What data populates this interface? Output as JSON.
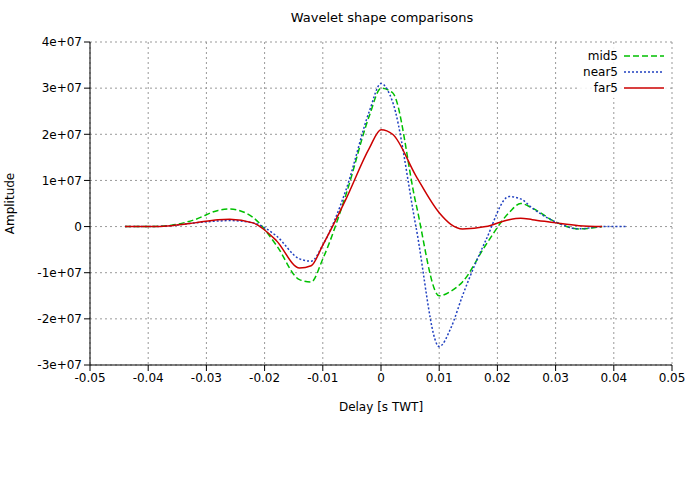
{
  "chart_data": {
    "type": "line",
    "title": "Wavelet shape comparisons",
    "x_label": "Delay [s TWT]",
    "y_label": "Amplitude",
    "x": [
      -0.044,
      -0.04,
      -0.036,
      -0.032,
      -0.028,
      -0.026,
      -0.022,
      -0.018,
      -0.014,
      -0.012,
      -0.01,
      -0.006,
      -0.002,
      0,
      0.002,
      0.006,
      0.01,
      0.012,
      0.014,
      0.018,
      0.022,
      0.024,
      0.026,
      0.03,
      0.034,
      0.038,
      0.042
    ],
    "series": [
      {
        "name": "mid5",
        "color": "#00c000",
        "line_style": "dashed",
        "values": [
          0,
          0,
          300000,
          1500000,
          3500000,
          3800000,
          2000000,
          -4000000,
          -11500000,
          -12000000,
          -7000000,
          7000000,
          24000000,
          30000000,
          29000000,
          5000000,
          -15000000,
          -14000000,
          -12000000,
          -4000000,
          3000000,
          5000000,
          4000000,
          1000000,
          -500000,
          0,
          null
        ]
      },
      {
        "name": "near5",
        "color": "#2040c0",
        "line_style": "dotted",
        "values": [
          0,
          0,
          200000,
          800000,
          1200000,
          1300000,
          800000,
          -2000000,
          -7000000,
          -7500000,
          -4000000,
          8000000,
          25000000,
          31000000,
          27000000,
          0,
          -26000000,
          -22000000,
          -15000000,
          -3000000,
          6500000,
          6000000,
          4000000,
          1000000,
          -500000,
          0,
          0
        ]
      },
      {
        "name": "far5",
        "color": "#cc0000",
        "line_style": "solid",
        "values": [
          0,
          0,
          200000,
          800000,
          1500000,
          1600000,
          800000,
          -3000000,
          -9000000,
          -8500000,
          -4000000,
          6000000,
          17000000,
          21000000,
          20000000,
          11000000,
          3000000,
          500000,
          -500000,
          0,
          1500000,
          1800000,
          1500000,
          800000,
          200000,
          0,
          null
        ]
      }
    ],
    "xlim": [
      -0.05,
      0.05
    ],
    "xticks": [
      -0.05,
      -0.04,
      -0.03,
      -0.02,
      -0.01,
      0,
      0.01,
      0.02,
      0.03,
      0.04,
      0.05
    ],
    "ylim": [
      -30000000,
      40000000
    ],
    "yticks": [
      {
        "value": -30000000,
        "label": "-3e+07"
      },
      {
        "value": -20000000,
        "label": "-2e+07"
      },
      {
        "value": -10000000,
        "label": "-1e+07"
      },
      0,
      {
        "value": 10000000,
        "label": "1e+07"
      },
      {
        "value": 20000000,
        "label": "2e+07"
      },
      {
        "value": 30000000,
        "label": "3e+07"
      },
      {
        "value": 40000000,
        "label": "4e+07"
      }
    ],
    "grid": true,
    "legend": "top-right"
  }
}
